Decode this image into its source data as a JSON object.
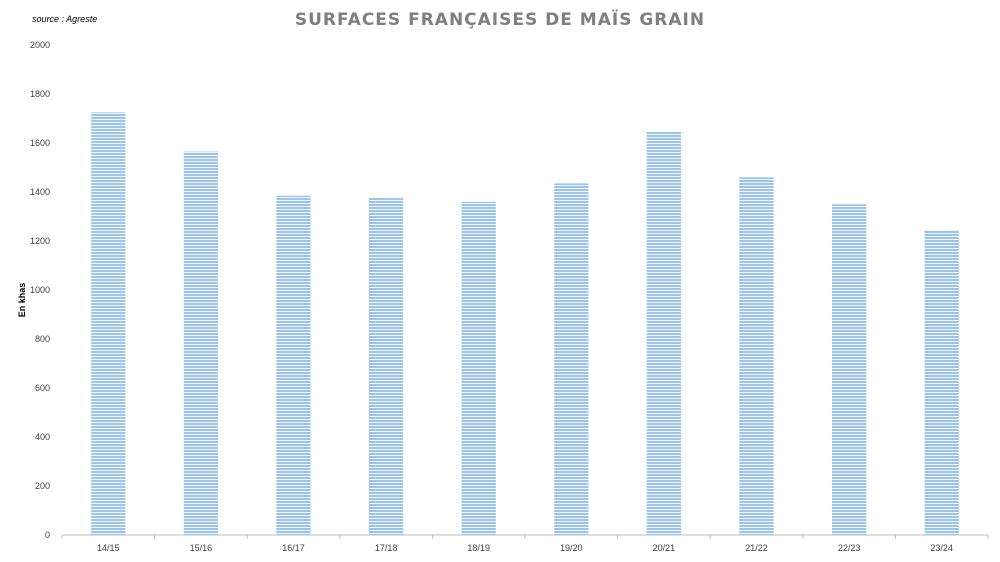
{
  "chart_data": {
    "type": "bar",
    "title": "SURFACES FRANÇAISES DE MAÏS GRAIN",
    "source": "source : Agreste",
    "ylabel": "En khas",
    "xlabel": "",
    "categories": [
      "14/15",
      "15/16",
      "16/17",
      "17/18",
      "18/19",
      "19/20",
      "20/21",
      "21/22",
      "22/23",
      "23/24"
    ],
    "values": [
      1725,
      1565,
      1385,
      1375,
      1360,
      1435,
      1645,
      1460,
      1350,
      1245
    ],
    "ylim": [
      0,
      2000
    ],
    "yticks": [
      0,
      200,
      400,
      600,
      800,
      1000,
      1200,
      1400,
      1600,
      1800,
      2000
    ],
    "grid": false,
    "legend": "none",
    "bar_color": "#9dc3e6",
    "bar_stripe_color": "#ffffff"
  }
}
